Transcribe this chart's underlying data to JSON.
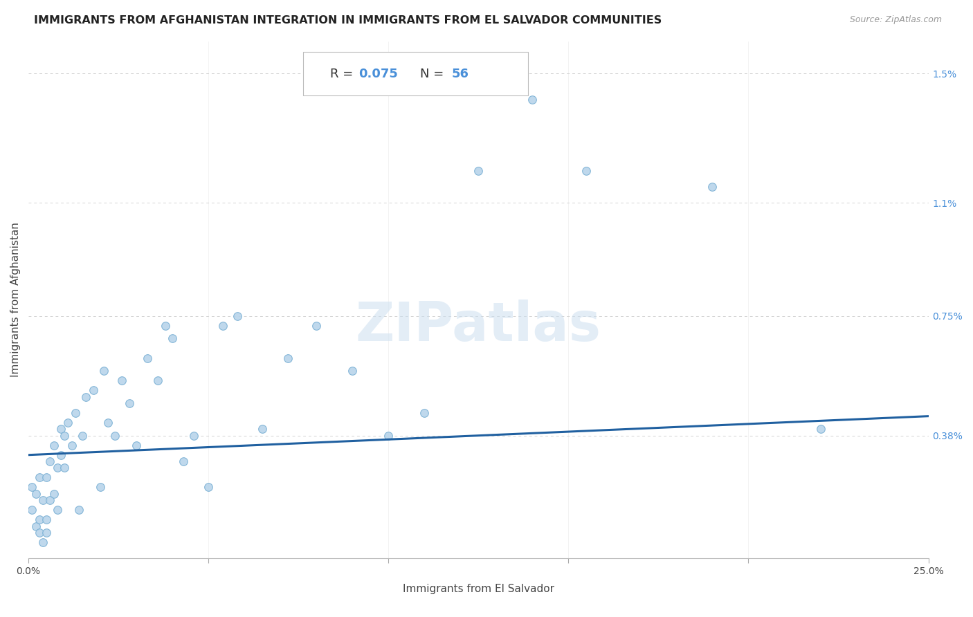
{
  "title": "IMMIGRANTS FROM AFGHANISTAN INTEGRATION IN IMMIGRANTS FROM EL SALVADOR COMMUNITIES",
  "source": "Source: ZipAtlas.com",
  "xlabel": "Immigrants from El Salvador",
  "ylabel": "Immigrants from Afghanistan",
  "xlim": [
    0.0,
    0.25
  ],
  "ylim": [
    0.0,
    0.016
  ],
  "R_value": "0.075",
  "N_value": "56",
  "scatter_color": "#b8d4ea",
  "scatter_edgecolor": "#7ab0d4",
  "scatter_size": 70,
  "line_color": "#2060a0",
  "line_width": 2.2,
  "watermark_text": "ZIPatlas",
  "title_fontsize": 11.5,
  "axis_label_fontsize": 11,
  "tick_fontsize": 10,
  "annotation_color": "#4a90d9",
  "grid_color": "#cccccc",
  "background_color": "#ffffff",
  "line_y0": 0.0032,
  "line_y1": 0.0044,
  "scatter_x": [
    0.001,
    0.001,
    0.002,
    0.002,
    0.003,
    0.003,
    0.003,
    0.004,
    0.004,
    0.005,
    0.005,
    0.005,
    0.006,
    0.006,
    0.007,
    0.007,
    0.008,
    0.008,
    0.009,
    0.009,
    0.01,
    0.01,
    0.011,
    0.012,
    0.013,
    0.014,
    0.015,
    0.016,
    0.018,
    0.02,
    0.021,
    0.022,
    0.024,
    0.026,
    0.028,
    0.03,
    0.033,
    0.036,
    0.038,
    0.04,
    0.043,
    0.046,
    0.05,
    0.054,
    0.058,
    0.065,
    0.072,
    0.08,
    0.09,
    0.1,
    0.11,
    0.125,
    0.14,
    0.155,
    0.19,
    0.22
  ],
  "scatter_y": [
    0.0022,
    0.0015,
    0.002,
    0.001,
    0.0008,
    0.0025,
    0.0012,
    0.0018,
    0.0005,
    0.0025,
    0.0012,
    0.0008,
    0.003,
    0.0018,
    0.0035,
    0.002,
    0.0028,
    0.0015,
    0.0032,
    0.004,
    0.0038,
    0.0028,
    0.0042,
    0.0035,
    0.0045,
    0.0015,
    0.0038,
    0.005,
    0.0052,
    0.0022,
    0.0058,
    0.0042,
    0.0038,
    0.0055,
    0.0048,
    0.0035,
    0.0062,
    0.0055,
    0.0072,
    0.0068,
    0.003,
    0.0038,
    0.0022,
    0.0072,
    0.0075,
    0.004,
    0.0062,
    0.0072,
    0.0058,
    0.0038,
    0.0045,
    0.012,
    0.0142,
    0.012,
    0.0115,
    0.004
  ]
}
